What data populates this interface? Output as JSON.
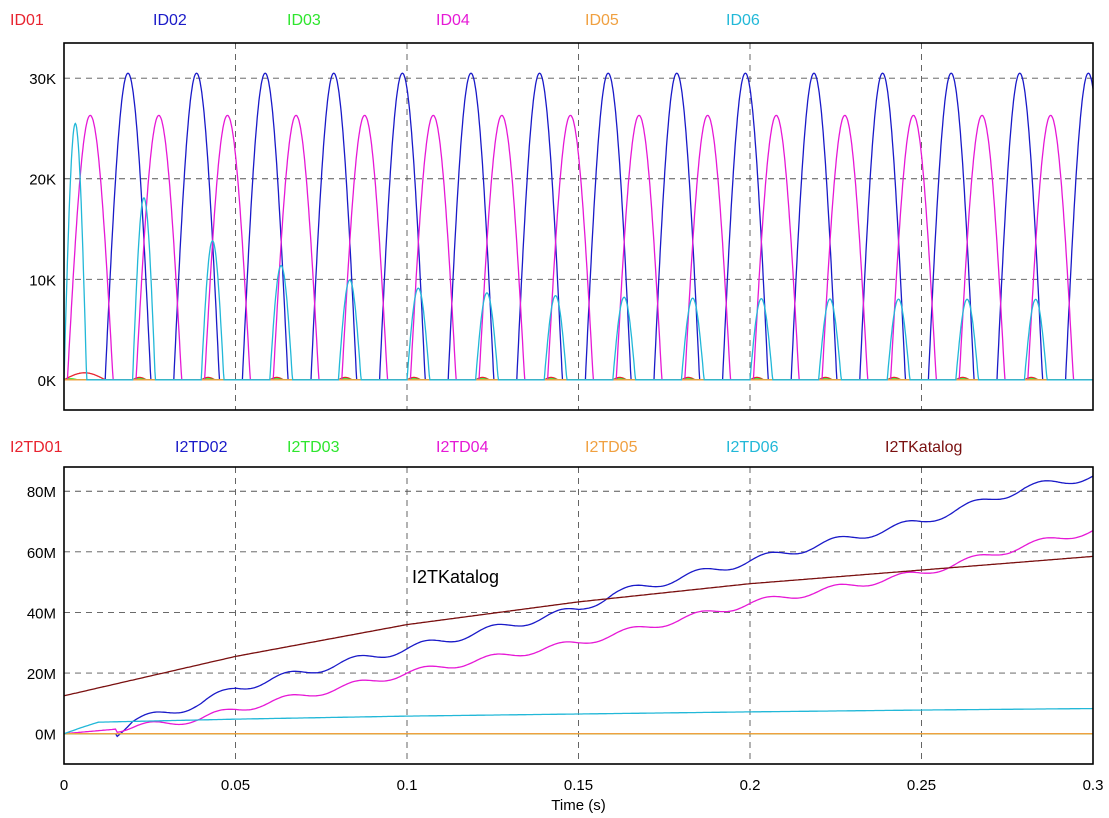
{
  "chart_data": [
    {
      "type": "line",
      "xlim": [
        0,
        0.3
      ],
      "ylim": [
        -3000,
        33500
      ],
      "ytick_values": [
        0,
        10000,
        20000,
        30000
      ],
      "ytick_labels": [
        "0K",
        "10K",
        "20K",
        "30K"
      ],
      "grid": true,
      "legend_position": "top",
      "series": [
        {
          "name": "ID01",
          "color": "#e8232f",
          "kind": "small_pulses",
          "peak": 700
        },
        {
          "name": "ID02",
          "color": "#1a1ac8",
          "kind": "pulse",
          "start": 0.012,
          "period": 0.02,
          "width": 0.0133,
          "peak": 30500
        },
        {
          "name": "ID03",
          "color": "#2ee62e",
          "kind": "small_pulses",
          "peak": 300
        },
        {
          "name": "ID04",
          "color": "#e619d6",
          "kind": "pulse",
          "start": 0.001,
          "period": 0.02,
          "width": 0.0133,
          "peak": 26300
        },
        {
          "name": "ID05",
          "color": "#f0a040",
          "kind": "zero",
          "peak": 0
        },
        {
          "name": "ID06",
          "color": "#22b8d8",
          "kind": "decaying_pulse",
          "start": 0.0,
          "period": 0.02,
          "width": 0.0066,
          "peak": 25500,
          "final_peak": 8000
        }
      ]
    },
    {
      "type": "line",
      "xlim": [
        0,
        0.3
      ],
      "ylim": [
        -10000000,
        88000000
      ],
      "ytick_values": [
        0,
        20000000,
        40000000,
        60000000,
        80000000
      ],
      "ytick_labels": [
        "0M",
        "20M",
        "40M",
        "60M",
        "80M"
      ],
      "xtick_values": [
        0,
        0.05,
        0.1,
        0.15,
        0.2,
        0.25,
        0.3
      ],
      "xtick_labels": [
        "0",
        "0.05",
        "0.1",
        "0.15",
        "0.2",
        "0.25",
        "0.3"
      ],
      "xlabel": "Time (s)",
      "grid": true,
      "legend_position": "top",
      "annotation": "I2TKatalog",
      "series": [
        {
          "name": "I2TD01",
          "color": "#e8232f",
          "x": [
            0,
            0.3
          ],
          "y": [
            0,
            0
          ]
        },
        {
          "name": "I2TD02",
          "color": "#1a1ac8",
          "x": [
            0,
            0.015,
            0.02,
            0.04,
            0.05,
            0.08,
            0.1,
            0.15,
            0.16,
            0.2,
            0.25,
            0.28,
            0.3
          ],
          "y": [
            0,
            0,
            4000000,
            10000000,
            15000000,
            23000000,
            28000000,
            41000000,
            46000000,
            57000000,
            70000000,
            81000000,
            85000000
          ]
        },
        {
          "name": "I2TD03",
          "color": "#2ee62e",
          "x": [
            0,
            0.3
          ],
          "y": [
            0,
            0
          ]
        },
        {
          "name": "I2TD04",
          "color": "#e619d6",
          "x": [
            0,
            0.02,
            0.04,
            0.05,
            0.08,
            0.1,
            0.15,
            0.2,
            0.25,
            0.28,
            0.3
          ],
          "y": [
            0,
            2000000,
            5000000,
            8000000,
            15000000,
            20000000,
            30000000,
            43000000,
            53000000,
            62000000,
            67000000
          ]
        },
        {
          "name": "I2TD05",
          "color": "#f0a040",
          "x": [
            0,
            0.3
          ],
          "y": [
            0,
            0
          ]
        },
        {
          "name": "I2TD06",
          "color": "#22b8d8",
          "x": [
            0,
            0.005,
            0.01,
            0.05,
            0.1,
            0.15,
            0.2,
            0.25,
            0.3
          ],
          "y": [
            0,
            2000000,
            3800000,
            4800000,
            5800000,
            6500000,
            7200000,
            7800000,
            8300000
          ]
        },
        {
          "name": "I2TKatalog",
          "color": "#7a1010",
          "x": [
            0,
            0.05,
            0.1,
            0.15,
            0.2,
            0.25,
            0.3
          ],
          "y": [
            12500000,
            25500000,
            36000000,
            43500000,
            49500000,
            54000000,
            58500000
          ]
        }
      ]
    }
  ]
}
